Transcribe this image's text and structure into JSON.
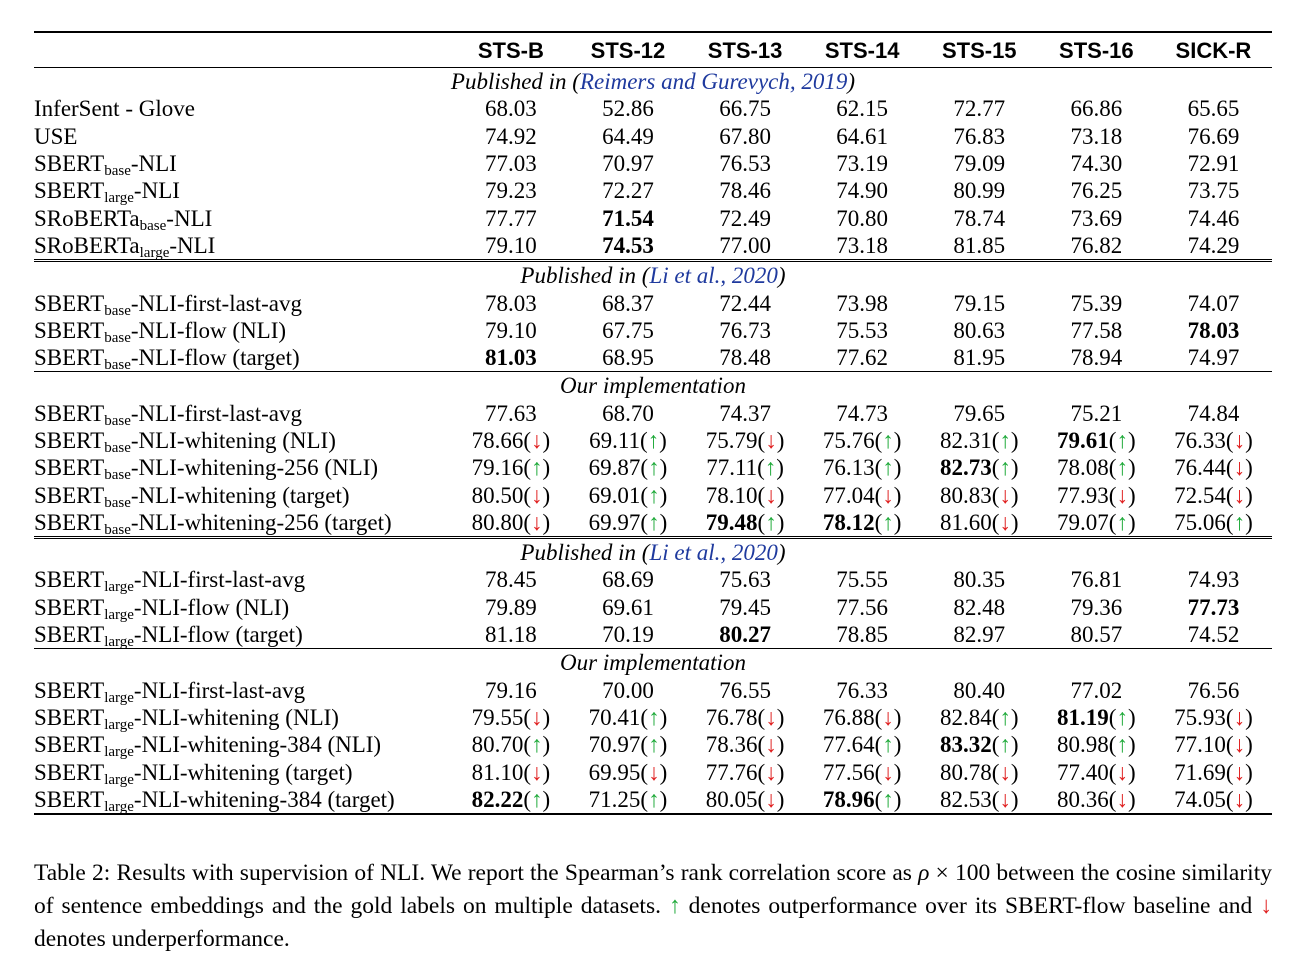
{
  "table": {
    "columns": [
      "",
      "STS-B",
      "STS-12",
      "STS-13",
      "STS-14",
      "STS-15",
      "STS-16",
      "SICK-R"
    ],
    "sections": [
      {
        "title_prefix": "Published in (",
        "title_ref": "Reimers and Gurevych, 2019",
        "title_suffix": ")",
        "rows": [
          {
            "name": "InferSent - Glove",
            "values": [
              "68.03",
              "52.86",
              "66.75",
              "62.15",
              "72.77",
              "66.86",
              "65.65"
            ]
          },
          {
            "name": "USE",
            "values": [
              "74.92",
              "64.49",
              "67.80",
              "64.61",
              "76.83",
              "73.18",
              "76.69"
            ]
          },
          {
            "base": "SBERT",
            "sub": "base",
            "suffix": "-NLI",
            "values": [
              "77.03",
              "70.97",
              "76.53",
              "73.19",
              "79.09",
              "74.30",
              "72.91"
            ]
          },
          {
            "base": "SBERT",
            "sub": "large",
            "suffix": "-NLI",
            "values": [
              "79.23",
              "72.27",
              "78.46",
              "74.90",
              "80.99",
              "76.25",
              "73.75"
            ]
          },
          {
            "base": "SRoBERTa",
            "sub": "base",
            "suffix": "-NLI",
            "values": [
              "77.77",
              "71.54",
              "72.49",
              "70.80",
              "78.74",
              "73.69",
              "74.46"
            ],
            "bold": [
              1
            ]
          },
          {
            "base": "SRoBERTa",
            "sub": "large",
            "suffix": "-NLI",
            "values": [
              "79.10",
              "74.53",
              "77.00",
              "73.18",
              "81.85",
              "76.82",
              "74.29"
            ],
            "bold": [
              1
            ]
          }
        ]
      },
      {
        "title_prefix": "Published in (",
        "title_ref": "Li et al., 2020",
        "title_suffix": ")",
        "double_rule": true,
        "rows": [
          {
            "base": "SBERT",
            "sub": "base",
            "suffix": "-NLI-first-last-avg",
            "values": [
              "78.03",
              "68.37",
              "72.44",
              "73.98",
              "79.15",
              "75.39",
              "74.07"
            ]
          },
          {
            "base": "SBERT",
            "sub": "base",
            "suffix": "-NLI-flow (NLI)",
            "values": [
              "79.10",
              "67.75",
              "76.73",
              "75.53",
              "80.63",
              "77.58",
              "78.03"
            ],
            "bold": [
              6
            ]
          },
          {
            "base": "SBERT",
            "sub": "base",
            "suffix": "-NLI-flow (target)",
            "values": [
              "81.03",
              "68.95",
              "78.48",
              "77.62",
              "81.95",
              "78.94",
              "74.97"
            ],
            "bold": [
              0
            ]
          }
        ]
      },
      {
        "title_prefix": "",
        "title_ref": "",
        "title_suffix": "",
        "title": "Our implementation",
        "rows": [
          {
            "base": "SBERT",
            "sub": "base",
            "suffix": "-NLI-first-last-avg",
            "values": [
              "77.63",
              "68.70",
              "74.37",
              "74.73",
              "79.65",
              "75.21",
              "74.84"
            ]
          },
          {
            "base": "SBERT",
            "sub": "base",
            "suffix": "-NLI-whitening (NLI)",
            "values": [
              "78.66",
              "69.11",
              "75.79",
              "75.76",
              "82.31",
              "79.61",
              "76.33"
            ],
            "arrows": [
              "down",
              "up",
              "down",
              "up",
              "up",
              "up",
              "down"
            ],
            "bold": [
              5
            ]
          },
          {
            "base": "SBERT",
            "sub": "base",
            "suffix": "-NLI-whitening-256 (NLI)",
            "values": [
              "79.16",
              "69.87",
              "77.11",
              "76.13",
              "82.73",
              "78.08",
              "76.44"
            ],
            "arrows": [
              "up",
              "up",
              "up",
              "up",
              "up",
              "up",
              "down"
            ],
            "bold": [
              4
            ]
          },
          {
            "base": "SBERT",
            "sub": "base",
            "suffix": "-NLI-whitening (target)",
            "values": [
              "80.50",
              "69.01",
              "78.10",
              "77.04",
              "80.83",
              "77.93",
              "72.54"
            ],
            "arrows": [
              "down",
              "up",
              "down",
              "down",
              "down",
              "down",
              "down"
            ]
          },
          {
            "base": "SBERT",
            "sub": "base",
            "suffix": "-NLI-whitening-256 (target)",
            "values": [
              "80.80",
              "69.97",
              "79.48",
              "78.12",
              "81.60",
              "79.07",
              "75.06"
            ],
            "arrows": [
              "down",
              "up",
              "up",
              "up",
              "down",
              "up",
              "up"
            ],
            "bold": [
              2,
              3
            ]
          }
        ]
      },
      {
        "title_prefix": "Published in (",
        "title_ref": "Li et al., 2020",
        "title_suffix": ")",
        "double_rule": true,
        "rows": [
          {
            "base": "SBERT",
            "sub": "large",
            "suffix": "-NLI-first-last-avg",
            "values": [
              "78.45",
              "68.69",
              "75.63",
              "75.55",
              "80.35",
              "76.81",
              "74.93"
            ]
          },
          {
            "base": "SBERT",
            "sub": "large",
            "suffix": "-NLI-flow (NLI)",
            "values": [
              "79.89",
              "69.61",
              "79.45",
              "77.56",
              "82.48",
              "79.36",
              "77.73"
            ],
            "bold": [
              6
            ]
          },
          {
            "base": "SBERT",
            "sub": "large",
            "suffix": "-NLI-flow (target)",
            "values": [
              "81.18",
              "70.19",
              "80.27",
              "78.85",
              "82.97",
              "80.57",
              "74.52"
            ],
            "bold": [
              2
            ]
          }
        ]
      },
      {
        "title_prefix": "",
        "title_ref": "",
        "title_suffix": "",
        "title": "Our implementation",
        "rows": [
          {
            "base": "SBERT",
            "sub": "large",
            "suffix": "-NLI-first-last-avg",
            "values": [
              "79.16",
              "70.00",
              "76.55",
              "76.33",
              "80.40",
              "77.02",
              "76.56"
            ]
          },
          {
            "base": "SBERT",
            "sub": "large",
            "suffix": "-NLI-whitening (NLI)",
            "values": [
              "79.55",
              "70.41",
              "76.78",
              "76.88",
              "82.84",
              "81.19",
              "75.93"
            ],
            "arrows": [
              "down",
              "up",
              "down",
              "down",
              "up",
              "up",
              "down"
            ],
            "bold": [
              5
            ]
          },
          {
            "base": "SBERT",
            "sub": "large",
            "suffix": "-NLI-whitening-384 (NLI)",
            "values": [
              "80.70",
              "70.97",
              "78.36",
              "77.64",
              "83.32",
              "80.98",
              "77.10"
            ],
            "arrows": [
              "up",
              "up",
              "down",
              "up",
              "up",
              "up",
              "down"
            ],
            "bold": [
              4
            ]
          },
          {
            "base": "SBERT",
            "sub": "large",
            "suffix": "-NLI-whitening (target)",
            "values": [
              "81.10",
              "69.95",
              "77.76",
              "77.56",
              "80.78",
              "77.40",
              "71.69"
            ],
            "arrows": [
              "down",
              "down",
              "down",
              "down",
              "down",
              "down",
              "down"
            ]
          },
          {
            "base": "SBERT",
            "sub": "large",
            "suffix": "-NLI-whitening-384 (target)",
            "values": [
              "82.22",
              "71.25",
              "80.05",
              "78.96",
              "82.53",
              "80.36",
              "74.05"
            ],
            "arrows": [
              "up",
              "up",
              "down",
              "up",
              "down",
              "down",
              "down"
            ],
            "bold": [
              0,
              3
            ]
          }
        ]
      }
    ],
    "arrow_up_symbol": "↑",
    "arrow_down_symbol": "↓",
    "arrow_up_color": "#1faa3a",
    "arrow_down_color": "#e02020"
  },
  "caption": {
    "part1": "Table 2: Results with supervision of NLI. We report the Spearman’s rank correlation score as ",
    "rho": "ρ",
    "part2": " × 100 between the cosine similarity of sentence embeddings and the gold labels on multiple datasets. ",
    "up": "↑",
    "part3": " denotes outperformance over its SBERT-flow baseline and ",
    "down": "↓",
    "part4": " denotes underperformance."
  }
}
